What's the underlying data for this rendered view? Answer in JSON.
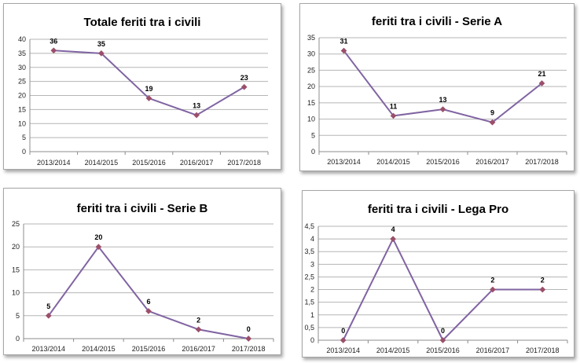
{
  "chart_data": [
    {
      "type": "line",
      "title": "Totale feriti tra i civili",
      "categories": [
        "2013/2014",
        "2014/2015",
        "2015/2016",
        "2016/2017",
        "2017/2018"
      ],
      "values": [
        36,
        35,
        19,
        13,
        23
      ],
      "ylim": [
        0,
        40
      ],
      "ystep": 5,
      "yticks": [
        "0",
        "5",
        "10",
        "15",
        "20",
        "25",
        "30",
        "35",
        "40"
      ],
      "grid": true,
      "legend": "none"
    },
    {
      "type": "line",
      "title": "feriti tra i civili -  Serie A",
      "categories": [
        "2013/2014",
        "2014/2015",
        "2015/2016",
        "2016/2017",
        "2017/2018"
      ],
      "values": [
        31,
        11,
        13,
        9,
        21
      ],
      "ylim": [
        0,
        35
      ],
      "ystep": 5,
      "yticks": [
        "0",
        "5",
        "10",
        "15",
        "20",
        "25",
        "30",
        "35"
      ],
      "grid": true,
      "legend": "none"
    },
    {
      "type": "line",
      "title": "feriti tra i civili -  Serie B",
      "categories": [
        "2013/2014",
        "2014/2015",
        "2015/2016",
        "2016/2017",
        "2017/2018"
      ],
      "values": [
        5,
        20,
        6,
        2,
        0
      ],
      "ylim": [
        0,
        25
      ],
      "ystep": 5,
      "yticks": [
        "0",
        "5",
        "10",
        "15",
        "20",
        "25"
      ],
      "grid": true,
      "legend": "none"
    },
    {
      "type": "line",
      "title": "feriti tra i civili - Lega Pro",
      "categories": [
        "2013/2014",
        "2014/2015",
        "2015/2016",
        "2016/2017",
        "2017/2018"
      ],
      "values": [
        0,
        4,
        0,
        2,
        2
      ],
      "ylim": [
        0,
        4.5
      ],
      "ystep": 0.5,
      "yticks": [
        "0",
        "0,5",
        "1",
        "1,5",
        "2",
        "2,5",
        "3",
        "3,5",
        "4",
        "4,5"
      ],
      "grid": true,
      "legend": "none"
    }
  ],
  "colors": {
    "line": "#8064a2",
    "marker": "#9b4f6a"
  }
}
